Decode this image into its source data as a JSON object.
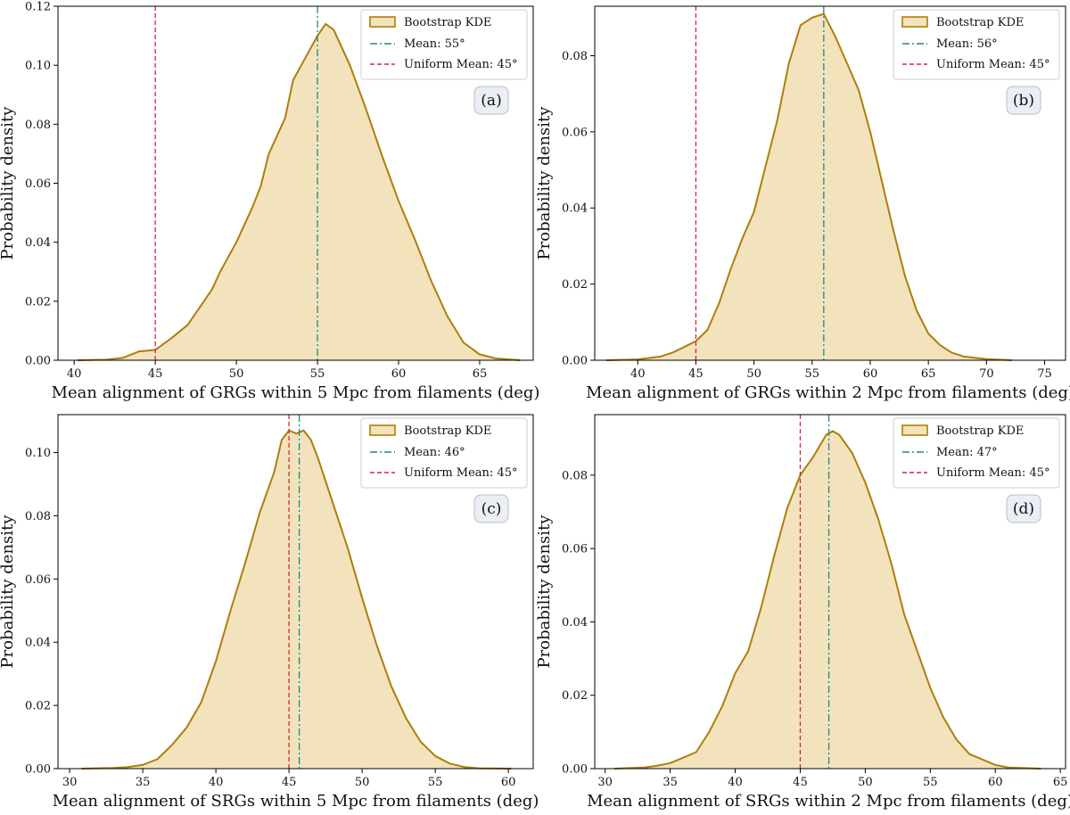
{
  "colors": {
    "kde_fill": "#f3e3bd",
    "kde_line": "#b07d0b",
    "mean_line": "#1a8a8a",
    "uniform_line": "#d62738",
    "tag_fill": "#eceef6",
    "tag_stroke": "#b9bcc8"
  },
  "chart_data": [
    {
      "type": "area",
      "panel_tag": "(a)",
      "xlabel": "Mean alignment of GRGs within 5 Mpc from filaments (deg)",
      "ylabel": "Probability density",
      "xlim": [
        39,
        68.3
      ],
      "ylim": [
        0,
        0.12
      ],
      "xticks": [
        40,
        45,
        50,
        55,
        60,
        65
      ],
      "yticks": [
        0.0,
        0.02,
        0.04,
        0.06,
        0.08,
        0.1,
        0.12
      ],
      "ytick_labels": [
        "0.00",
        "0.02",
        "0.04",
        "0.06",
        "0.08",
        "0.10",
        "0.12"
      ],
      "legend": {
        "position": "top-right",
        "entries": [
          "Bootstrap KDE",
          "Mean: 55°",
          "Uniform Mean: 45°"
        ]
      },
      "mean_value": 55,
      "uniform_mean": 45,
      "series": [
        {
          "name": "Bootstrap KDE",
          "x": [
            40.2,
            42,
            43,
            44,
            45,
            46,
            47,
            48,
            48.5,
            49,
            50,
            51,
            51.5,
            52,
            53,
            53.5,
            54,
            55,
            55.5,
            56,
            57,
            58,
            59,
            60,
            61,
            62,
            63,
            64,
            65,
            66,
            67.5
          ],
          "y": [
            0.0,
            0.0002,
            0.0008,
            0.003,
            0.0035,
            0.0075,
            0.012,
            0.02,
            0.024,
            0.03,
            0.04,
            0.052,
            0.059,
            0.07,
            0.082,
            0.095,
            0.1,
            0.11,
            0.114,
            0.112,
            0.1,
            0.085,
            0.069,
            0.054,
            0.041,
            0.027,
            0.015,
            0.006,
            0.002,
            0.0006,
            0.0
          ]
        }
      ]
    },
    {
      "type": "area",
      "panel_tag": "(b)",
      "xlabel": "Mean alignment of GRGs within 2 Mpc from filaments (deg)",
      "ylabel": "Probability density",
      "xlim": [
        36.3,
        76.8
      ],
      "ylim": [
        0,
        0.093
      ],
      "xticks": [
        40,
        45,
        50,
        55,
        60,
        65,
        70,
        75
      ],
      "yticks": [
        0.0,
        0.02,
        0.04,
        0.06,
        0.08
      ],
      "ytick_labels": [
        "0.00",
        "0.02",
        "0.04",
        "0.06",
        "0.08"
      ],
      "legend": {
        "position": "top-right",
        "entries": [
          "Bootstrap KDE",
          "Mean: 56°",
          "Uniform Mean: 45°"
        ]
      },
      "mean_value": 56,
      "uniform_mean": 45,
      "series": [
        {
          "name": "Bootstrap KDE",
          "x": [
            37.3,
            40,
            42,
            43,
            44,
            45,
            46,
            47,
            48,
            49,
            50,
            51,
            52,
            53,
            54,
            55,
            56,
            57,
            58,
            59,
            60,
            61,
            62,
            63,
            64,
            65,
            66,
            67,
            68,
            70,
            72.2
          ],
          "y": [
            0.0,
            0.0002,
            0.001,
            0.002,
            0.0035,
            0.005,
            0.008,
            0.015,
            0.024,
            0.032,
            0.039,
            0.051,
            0.063,
            0.078,
            0.088,
            0.09,
            0.091,
            0.085,
            0.078,
            0.071,
            0.06,
            0.047,
            0.034,
            0.022,
            0.013,
            0.007,
            0.004,
            0.002,
            0.001,
            0.0003,
            0.0
          ]
        }
      ]
    },
    {
      "type": "area",
      "panel_tag": "(c)",
      "xlabel": "Mean alignment of SRGs within 5 Mpc from filaments (deg)",
      "ylabel": "Probability density",
      "xlim": [
        29.2,
        61.7
      ],
      "ylim": [
        0,
        0.112
      ],
      "xticks": [
        30,
        35,
        40,
        45,
        50,
        55,
        60
      ],
      "yticks": [
        0.0,
        0.02,
        0.04,
        0.06,
        0.08,
        0.1
      ],
      "ytick_labels": [
        "0.00",
        "0.02",
        "0.04",
        "0.06",
        "0.08",
        "0.10"
      ],
      "legend": {
        "position": "top-right",
        "entries": [
          "Bootstrap KDE",
          "Mean: 46°",
          "Uniform Mean: 45°"
        ]
      },
      "mean_value": 45.7,
      "uniform_mean": 45,
      "series": [
        {
          "name": "Bootstrap KDE",
          "x": [
            30.8,
            33,
            34,
            35,
            36,
            37,
            38,
            39,
            40,
            41,
            42,
            43,
            44,
            44.5,
            45,
            45.5,
            46,
            46.5,
            47,
            48,
            49,
            50,
            51,
            52,
            53,
            54,
            55,
            56,
            57,
            58,
            60.2
          ],
          "y": [
            0.0,
            0.0002,
            0.0005,
            0.0012,
            0.003,
            0.0075,
            0.013,
            0.021,
            0.034,
            0.05,
            0.065,
            0.081,
            0.094,
            0.104,
            0.107,
            0.106,
            0.107,
            0.104,
            0.098,
            0.084,
            0.07,
            0.054,
            0.039,
            0.026,
            0.016,
            0.0085,
            0.004,
            0.0016,
            0.0005,
            0.0001,
            0.0
          ]
        }
      ]
    },
    {
      "type": "area",
      "panel_tag": "(d)",
      "xlabel": "Mean alignment of SRGs within 2 Mpc from filaments (deg)",
      "ylabel": "Probability density",
      "xlim": [
        29.2,
        65.4
      ],
      "ylim": [
        0,
        0.0965
      ],
      "xticks": [
        30,
        35,
        40,
        45,
        50,
        55,
        60,
        65
      ],
      "yticks": [
        0.0,
        0.02,
        0.04,
        0.06,
        0.08
      ],
      "ytick_labels": [
        "0.00",
        "0.02",
        "0.04",
        "0.06",
        "0.08"
      ],
      "legend": {
        "position": "top-right",
        "entries": [
          "Bootstrap KDE",
          "Mean: 47°",
          "Uniform Mean: 45°"
        ]
      },
      "mean_value": 47.2,
      "uniform_mean": 45,
      "series": [
        {
          "name": "Bootstrap KDE",
          "x": [
            30.7,
            33,
            34,
            35,
            36,
            37,
            38,
            39,
            40,
            41,
            42,
            43,
            44,
            45,
            46,
            47,
            47.5,
            48,
            49,
            50,
            51,
            52,
            53,
            54,
            55,
            56,
            57,
            58,
            59,
            60,
            61,
            63.5
          ],
          "y": [
            0.0,
            0.0003,
            0.0008,
            0.0015,
            0.003,
            0.0045,
            0.01,
            0.017,
            0.026,
            0.032,
            0.044,
            0.058,
            0.071,
            0.08,
            0.085,
            0.091,
            0.092,
            0.091,
            0.086,
            0.078,
            0.068,
            0.056,
            0.042,
            0.032,
            0.022,
            0.014,
            0.008,
            0.004,
            0.0025,
            0.001,
            0.0003,
            0.0
          ]
        }
      ]
    }
  ]
}
